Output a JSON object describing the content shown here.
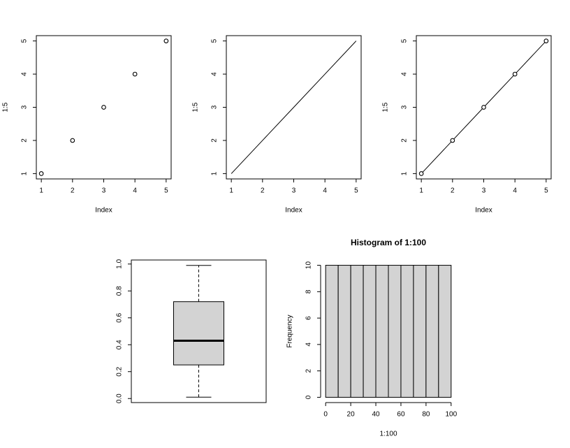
{
  "chart_data": [
    {
      "type": "scatter",
      "x": [
        1,
        2,
        3,
        4,
        5
      ],
      "values": [
        1,
        2,
        3,
        4,
        5
      ],
      "xlabel": "Index",
      "ylabel": "1:5",
      "xlim": [
        0.84,
        5.16
      ],
      "ylim": [
        0.84,
        5.16
      ],
      "xticks": [
        1,
        2,
        3,
        4,
        5
      ],
      "yticks": [
        1,
        2,
        3,
        4,
        5
      ],
      "color": "#000000"
    },
    {
      "type": "line",
      "x": [
        1,
        2,
        3,
        4,
        5
      ],
      "values": [
        1,
        2,
        3,
        4,
        5
      ],
      "xlabel": "Index",
      "ylabel": "1:5",
      "xlim": [
        0.84,
        5.16
      ],
      "ylim": [
        0.84,
        5.16
      ],
      "xticks": [
        1,
        2,
        3,
        4,
        5
      ],
      "yticks": [
        1,
        2,
        3,
        4,
        5
      ],
      "color": "#000000"
    },
    {
      "type": "line",
      "markers": true,
      "x": [
        1,
        2,
        3,
        4,
        5
      ],
      "values": [
        1,
        2,
        3,
        4,
        5
      ],
      "xlabel": "Index",
      "ylabel": "1:5",
      "xlim": [
        0.84,
        5.16
      ],
      "ylim": [
        0.84,
        5.16
      ],
      "xticks": [
        1,
        2,
        3,
        4,
        5
      ],
      "yticks": [
        1,
        2,
        3,
        4,
        5
      ],
      "color": "#000000"
    },
    {
      "type": "box",
      "min": 0.01,
      "q1": 0.25,
      "median": 0.43,
      "q3": 0.72,
      "max": 0.99,
      "color": "#d3d3d3",
      "ylim": [
        -0.03,
        1.03
      ],
      "yticks": [
        {
          "value": 0,
          "label": "0.0"
        },
        {
          "value": 0.2,
          "label": "0.2"
        },
        {
          "value": 0.4,
          "label": "0.4"
        },
        {
          "value": 0.6,
          "label": "0.6"
        },
        {
          "value": 0.8,
          "label": "0.8"
        },
        {
          "value": 1,
          "label": "1.0"
        }
      ]
    },
    {
      "type": "histogram",
      "title": "Histogram of 1:100",
      "xlabel": "1:100",
      "ylabel": "Frequency",
      "bins": [
        0,
        10,
        20,
        30,
        40,
        50,
        60,
        70,
        80,
        90,
        100
      ],
      "values": [
        10,
        10,
        10,
        10,
        10,
        10,
        10,
        10,
        10,
        10
      ],
      "color": "#d3d3d3",
      "xlim": [
        -4,
        104
      ],
      "ylim": [
        -0.4,
        10.4
      ],
      "xticks": [
        0,
        20,
        40,
        60,
        80,
        100
      ],
      "yticks": [
        0,
        2,
        4,
        6,
        8,
        10
      ]
    }
  ]
}
